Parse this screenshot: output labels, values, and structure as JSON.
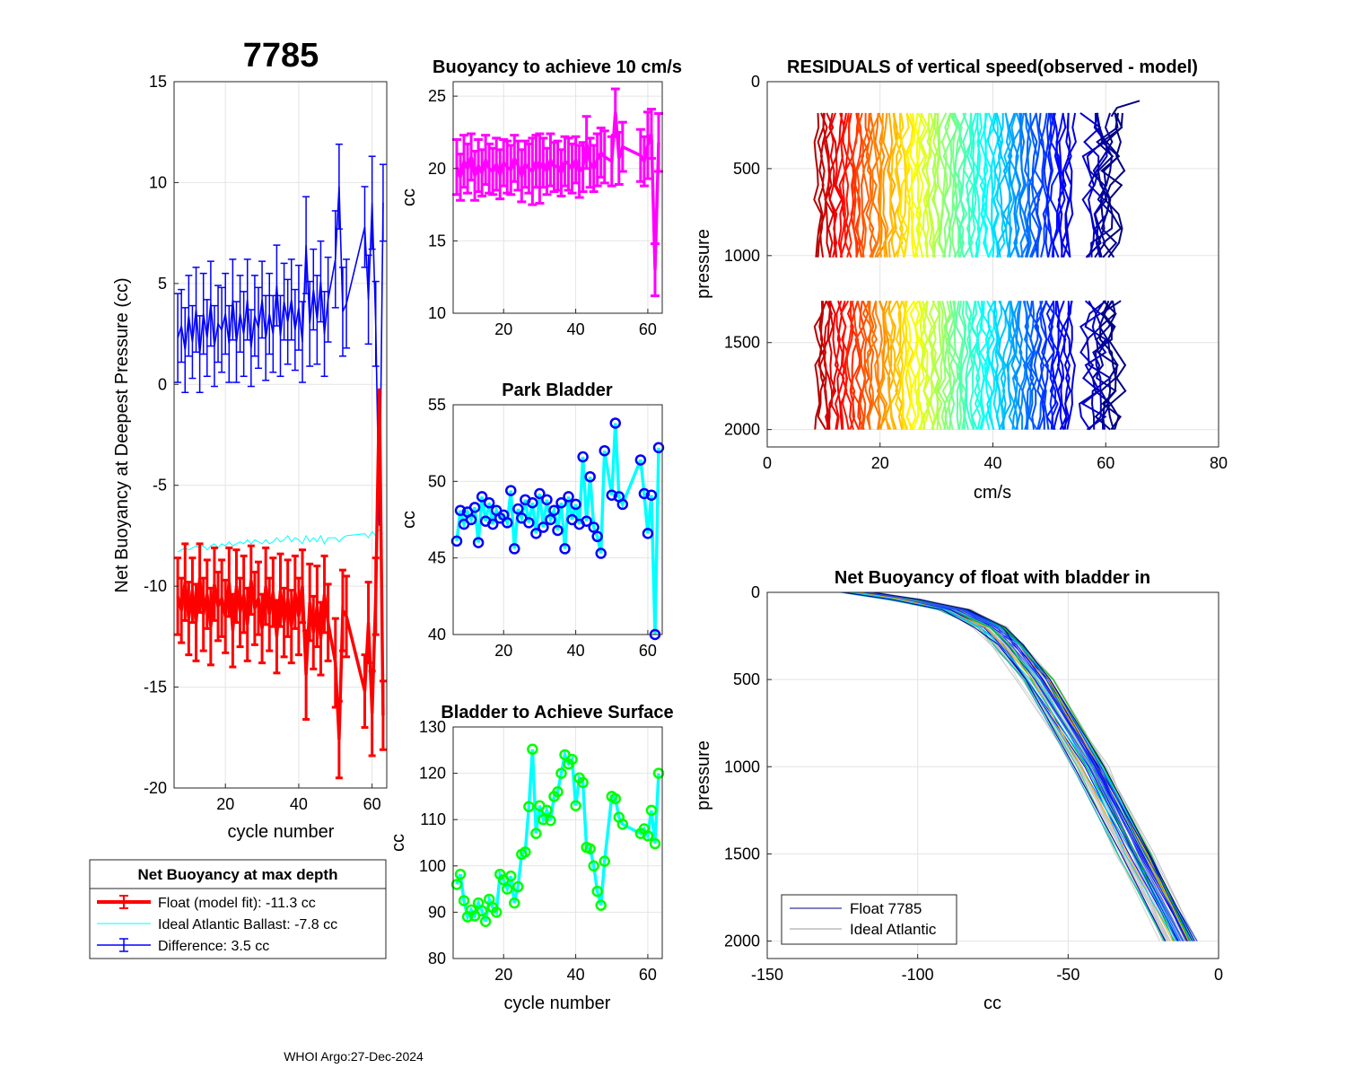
{
  "figure": {
    "title": "7785",
    "footer": "WHOI Argo:27-Dec-2024"
  },
  "legend": {
    "title": "Net Buoyancy at max depth",
    "entries": [
      {
        "label": "Float (model fit): -11.3 cc",
        "color": "#ff0000"
      },
      {
        "label": "Ideal Atlantic Ballast:  -7.8 cc",
        "color": "#00ffff"
      },
      {
        "label": "Difference:   3.5 cc",
        "color": "#0000ff"
      }
    ]
  },
  "legend2": {
    "entries": [
      {
        "label": "Float 7785",
        "color": "#000080"
      },
      {
        "label": "Ideal Atlantic",
        "color": "#999999"
      }
    ]
  },
  "chart_data": [
    {
      "id": "netbuoy",
      "type": "line",
      "title": "",
      "xlabel": "cycle number",
      "ylabel": "Net Buoyancy at Deepest Pressure (cc)",
      "xlim": [
        6,
        64
      ],
      "ylim": [
        -20,
        15
      ],
      "xticks": [
        20,
        40,
        60
      ],
      "yticks": [
        -20,
        -15,
        -10,
        -5,
        0,
        5,
        10,
        15
      ],
      "ytick_labels": [
        "-20",
        "-15",
        "-10",
        "-5",
        "0",
        "5",
        "10",
        "15"
      ],
      "x": [
        7,
        8,
        9,
        10,
        11,
        12,
        13,
        14,
        15,
        16,
        17,
        18,
        19,
        20,
        21,
        22,
        23,
        24,
        25,
        26,
        27,
        28,
        29,
        30,
        31,
        32,
        33,
        34,
        35,
        36,
        37,
        38,
        39,
        40,
        41,
        42,
        43,
        44,
        45,
        46,
        47,
        48,
        50,
        51,
        52,
        53,
        58,
        59,
        60,
        61,
        62,
        63
      ],
      "series": [
        {
          "name": "Float (model fit)",
          "color": "#ff0000",
          "values": [
            -10.5,
            -11.2,
            -9.8,
            -11.6,
            -10.2,
            -11.8,
            -9.6,
            -11.4,
            -10.4,
            -12.0,
            -9.9,
            -11.0,
            -10.6,
            -11.5,
            -9.8,
            -12.2,
            -10.0,
            -11.3,
            -10.4,
            -11.9,
            -9.7,
            -11.1,
            -10.6,
            -12.1,
            -10.0,
            -11.4,
            -10.3,
            -12.5,
            -10.2,
            -11.8,
            -10.6,
            -12.0,
            -10.3,
            -11.5,
            -10.0,
            -14.4,
            -10.8,
            -12.3,
            -11.0,
            -12.6,
            -10.4,
            -11.8,
            -13.8,
            -17.6,
            -11.2,
            -11.5,
            -15.2,
            -11.8,
            -16.3,
            -10.5,
            -0.2,
            -16.4
          ],
          "errors": [
            1.9,
            1.6,
            1.9,
            1.8,
            1.6,
            1.9,
            1.7,
            1.8,
            1.7,
            1.9,
            1.8,
            1.7,
            1.9,
            1.8,
            1.7,
            1.8,
            1.8,
            1.7,
            1.9,
            1.8,
            1.7,
            1.8,
            1.8,
            1.7,
            1.9,
            1.8,
            1.7,
            1.8,
            1.8,
            1.7,
            1.9,
            1.8,
            1.8,
            1.9,
            1.8,
            2.2,
            1.9,
            1.8,
            2.0,
            1.8,
            1.9,
            1.9,
            2.2,
            1.9,
            2.0,
            2.0,
            1.8,
            2.0,
            2.1,
            1.9,
            0.0,
            1.7
          ]
        },
        {
          "name": "Ideal Atlantic Ballast",
          "color": "#00ffff",
          "values": [
            -8.3,
            -8.2,
            -8.1,
            -8.2,
            -8.1,
            -8.0,
            -8.1,
            -8.0,
            -8.2,
            -8.0,
            -7.9,
            -8.1,
            -7.9,
            -8.0,
            -7.8,
            -8.0,
            -7.9,
            -7.8,
            -7.9,
            -7.7,
            -7.9,
            -7.7,
            -7.8,
            -7.9,
            -7.7,
            -7.9,
            -7.8,
            -7.6,
            -7.8,
            -7.7,
            -7.5,
            -7.8,
            -7.6,
            -7.7,
            -7.9,
            -7.5,
            -7.8,
            -7.6,
            -7.8,
            -7.5,
            -7.9,
            -7.6,
            -7.6,
            -7.8,
            -7.6,
            -7.5,
            -7.4,
            -7.6,
            -7.3,
            -7.5,
            -7.2,
            -7.4
          ]
        },
        {
          "name": "Difference",
          "color": "#0000ff",
          "values": [
            2.3,
            2.9,
            1.7,
            3.4,
            2.1,
            3.7,
            1.5,
            3.5,
            2.3,
            4.0,
            1.9,
            3.0,
            2.7,
            3.5,
            2.0,
            4.2,
            2.1,
            3.5,
            2.5,
            4.2,
            1.8,
            3.4,
            2.8,
            4.2,
            2.3,
            3.5,
            2.5,
            4.9,
            2.4,
            4.1,
            3.1,
            4.2,
            2.7,
            3.8,
            2.1,
            6.9,
            3.0,
            4.7,
            3.2,
            5.1,
            2.5,
            4.2,
            6.2,
            9.8,
            3.6,
            4.0,
            7.8,
            4.2,
            9.0,
            3.0,
            -7.0,
            9.0
          ],
          "errors": [
            2.2,
            1.8,
            2.1,
            2.0,
            1.8,
            2.1,
            1.9,
            2.0,
            1.9,
            2.1,
            2.0,
            1.9,
            2.1,
            2.0,
            1.9,
            2.0,
            2.0,
            1.9,
            2.1,
            2.0,
            1.9,
            2.0,
            2.0,
            1.9,
            2.1,
            2.0,
            1.9,
            2.0,
            2.0,
            1.9,
            2.1,
            2.0,
            2.0,
            2.1,
            2.0,
            2.4,
            2.1,
            2.0,
            2.2,
            2.0,
            2.1,
            2.1,
            2.4,
            2.1,
            2.2,
            2.2,
            2.0,
            2.2,
            2.3,
            2.1,
            0.0,
            1.9
          ]
        }
      ]
    },
    {
      "id": "buoy10",
      "type": "line",
      "title": "Buoyancy to achieve 10 cm/s",
      "xlabel": "",
      "ylabel": "cc",
      "xlim": [
        6,
        64
      ],
      "ylim": [
        10,
        26
      ],
      "xticks": [
        20,
        40,
        60
      ],
      "yticks": [
        10,
        15,
        20,
        25
      ],
      "ytick_labels": [
        "10",
        "15",
        "20",
        "25"
      ],
      "x": [
        7,
        8,
        9,
        10,
        11,
        12,
        13,
        14,
        15,
        16,
        17,
        18,
        19,
        20,
        21,
        22,
        23,
        24,
        25,
        26,
        27,
        28,
        29,
        30,
        31,
        32,
        33,
        34,
        35,
        36,
        37,
        38,
        39,
        40,
        41,
        42,
        43,
        44,
        45,
        46,
        47,
        48,
        50,
        51,
        52,
        53,
        58,
        59,
        60,
        61,
        62,
        63
      ],
      "series": [
        {
          "name": "Buoyancy to achieve 10 cm/s",
          "color": "#ff00ff",
          "values": [
            20.1,
            19.4,
            20.5,
            20.0,
            20.8,
            19.5,
            20.2,
            19.7,
            20.6,
            20.0,
            19.8,
            20.3,
            19.6,
            20.4,
            20.1,
            19.9,
            20.7,
            20.2,
            19.5,
            20.3,
            20.0,
            19.8,
            20.5,
            20.0,
            20.4,
            19.8,
            20.6,
            20.1,
            20.2,
            19.7,
            20.5,
            20.3,
            20.0,
            20.6,
            19.8,
            20.1,
            21.8,
            20.4,
            20.0,
            20.6,
            21.1,
            20.8,
            20.5,
            23.9,
            20.7,
            21.5,
            20.9,
            20.5,
            21.6,
            22.4,
            13.0,
            21.8
          ],
          "errors": [
            1.9,
            1.6,
            1.8,
            1.7,
            1.6,
            1.7,
            1.8,
            1.6,
            1.7,
            1.7,
            1.6,
            1.8,
            1.7,
            1.6,
            1.8,
            1.7,
            1.6,
            1.7,
            1.8,
            1.6,
            1.7,
            2.3,
            1.8,
            2.4,
            1.7,
            1.6,
            1.8,
            1.7,
            1.7,
            1.6,
            1.7,
            1.8,
            1.7,
            1.6,
            1.8,
            1.7,
            1.8,
            1.7,
            1.6,
            1.8,
            1.7,
            1.8,
            1.7,
            1.6,
            1.8,
            1.7,
            1.8,
            1.7,
            2.3,
            1.7,
            1.8,
            2.0
          ]
        }
      ]
    },
    {
      "id": "park",
      "type": "line",
      "title": "Park Bladder",
      "xlabel": "",
      "ylabel": "cc",
      "xlim": [
        6,
        64
      ],
      "ylim": [
        40,
        55
      ],
      "xticks": [
        20,
        40,
        60
      ],
      "yticks": [
        40,
        45,
        50,
        55
      ],
      "ytick_labels": [
        "40",
        "45",
        "50",
        "55"
      ],
      "x": [
        7,
        8,
        9,
        10,
        11,
        12,
        13,
        14,
        15,
        16,
        17,
        18,
        19,
        20,
        21,
        22,
        23,
        24,
        25,
        26,
        27,
        28,
        29,
        30,
        31,
        32,
        33,
        34,
        35,
        36,
        37,
        38,
        39,
        40,
        41,
        42,
        43,
        44,
        45,
        46,
        47,
        48,
        50,
        51,
        52,
        53,
        58,
        59,
        60,
        61,
        62,
        63
      ],
      "series": [
        {
          "name": "Park Bladder",
          "color": "#00ffff",
          "marker_color": "#0000ff",
          "values": [
            46.1,
            48.1,
            47.2,
            48.0,
            47.5,
            48.3,
            46.0,
            49.0,
            47.4,
            48.6,
            47.2,
            48.1,
            47.6,
            47.8,
            47.3,
            49.4,
            45.6,
            48.2,
            47.6,
            48.8,
            47.3,
            48.6,
            46.6,
            49.2,
            47.0,
            48.8,
            47.5,
            48.1,
            46.8,
            48.6,
            45.6,
            49.0,
            47.5,
            48.5,
            47.2,
            51.6,
            47.4,
            50.3,
            47.0,
            46.4,
            45.3,
            52.0,
            49.1,
            53.8,
            49.0,
            48.5,
            51.4,
            49.2,
            46.6,
            49.1,
            40.0,
            52.2
          ]
        }
      ]
    },
    {
      "id": "surface",
      "type": "line",
      "title": "Bladder to Achieve Surface",
      "xlabel": "cycle number",
      "ylabel": "cc",
      "xlim": [
        6,
        64
      ],
      "ylim": [
        80,
        130
      ],
      "xticks": [
        20,
        40,
        60
      ],
      "yticks": [
        80,
        90,
        100,
        110,
        120,
        130
      ],
      "ytick_labels": [
        "80",
        "90",
        "100",
        "110",
        "120",
        "130"
      ],
      "x": [
        7,
        8,
        9,
        10,
        11,
        12,
        13,
        14,
        15,
        16,
        17,
        18,
        19,
        20,
        21,
        22,
        23,
        24,
        25,
        26,
        27,
        28,
        29,
        30,
        31,
        32,
        33,
        34,
        35,
        36,
        37,
        38,
        39,
        40,
        41,
        42,
        43,
        44,
        45,
        46,
        47,
        48,
        50,
        51,
        52,
        53,
        58,
        59,
        60,
        61,
        62,
        63
      ],
      "series": [
        {
          "name": "Bladder to Achieve Surface",
          "color": "#00ffff",
          "marker_color": "#00ff00",
          "values": [
            96.0,
            98.2,
            92.5,
            89.0,
            90.5,
            89.2,
            92.0,
            90.3,
            88.0,
            92.8,
            91.0,
            90.0,
            98.2,
            97.0,
            95.0,
            97.8,
            92.0,
            95.5,
            102.5,
            103.0,
            112.8,
            125.2,
            107.0,
            113.0,
            110.0,
            112.0,
            109.8,
            115.0,
            116.0,
            120.0,
            124.0,
            122.0,
            123.0,
            113.0,
            119.0,
            118.0,
            104.0,
            103.7,
            100.0,
            94.5,
            91.5,
            101.0,
            115.0,
            114.5,
            110.5,
            109.0,
            107.0,
            108.0,
            106.5,
            112.0,
            104.8,
            120.0
          ]
        }
      ]
    },
    {
      "id": "residuals",
      "type": "line",
      "title": "RESIDUALS of vertical speed(observed - model)",
      "xlabel": "cm/s",
      "ylabel": "pressure",
      "xlim": [
        0,
        80
      ],
      "ylim": [
        0,
        2100
      ],
      "y_reversed": true,
      "xticks": [
        0,
        20,
        40,
        60,
        80
      ],
      "yticks": [
        0,
        500,
        1000,
        1500,
        2000
      ],
      "xtick_labels": [
        "0",
        "20",
        "40",
        "60",
        "80"
      ],
      "ytick_labels": [
        "0",
        "500",
        "1000",
        "1500",
        "2000"
      ],
      "description_values": {
        "profiles_per_cycle": 2,
        "cycles": 52,
        "x_offset_start": 9,
        "x_offset_end": 64,
        "upper_segment_pressure": [
          180,
          1010
        ],
        "lower_segment_pressure": [
          1260,
          2000
        ]
      }
    },
    {
      "id": "netprofile",
      "type": "line",
      "title": "Net Buoyancy of float with bladder in",
      "xlabel": "cc",
      "ylabel": "pressure",
      "xlim": [
        -150,
        0
      ],
      "ylim": [
        0,
        2100
      ],
      "y_reversed": true,
      "xticks": [
        -150,
        -100,
        -50,
        0
      ],
      "yticks": [
        0,
        500,
        1000,
        1500,
        2000
      ],
      "xtick_labels": [
        "-150",
        "-100",
        "-50",
        "0"
      ],
      "ytick_labels": [
        "0",
        "500",
        "1000",
        "1500",
        "2000"
      ],
      "reference_profile": {
        "pressure": [
          0,
          40,
          100,
          200,
          300,
          500,
          1000,
          1500,
          2000
        ],
        "cc": [
          -120,
          -105,
          -88,
          -76,
          -70,
          -61,
          -43,
          -28,
          -13
        ]
      }
    }
  ]
}
